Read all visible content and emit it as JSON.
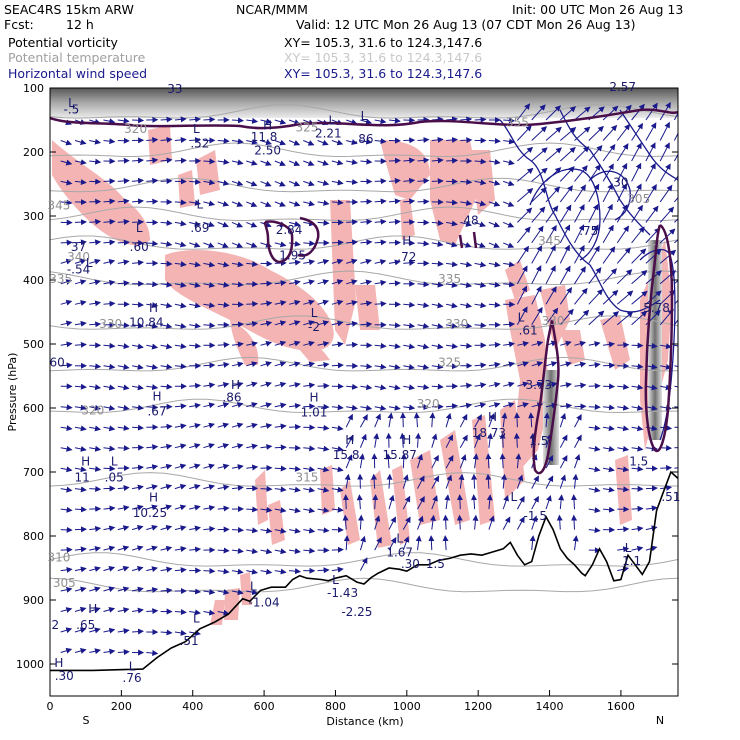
{
  "header": {
    "model": "SEAC4RS 15km ARW",
    "org": "NCAR/MMM",
    "init": "Init: 00 UTC Mon 26 Aug 13",
    "fcst_label": "Fcst:",
    "fcst_value": "12 h",
    "valid": "Valid: 12 UTC Mon 26 Aug 13 (07 CDT Mon 26 Aug 13)"
  },
  "fields": [
    {
      "name": "Potential vorticity",
      "xy": "XY=  105.3,  31.6  to  124.3,147.6",
      "color": "#000000"
    },
    {
      "name": "Potential temperature",
      "xy": "XY=  105.3,  31.6  to  124.3,147.6",
      "color": "#a0a0a0"
    },
    {
      "name": "Horizontal wind speed",
      "xy": "XY=  105.3,  31.6  to  124.3,147.6",
      "color": "#1a1a8c"
    }
  ],
  "chart_data": {
    "type": "cross-section",
    "xlabel": "Distance (km)",
    "ylabel": "Pressure (hPa)",
    "xlim": [
      0,
      1760
    ],
    "ylim": [
      1050,
      100
    ],
    "x_ticks": [
      0,
      200,
      400,
      600,
      800,
      1000,
      1200,
      1400,
      1600
    ],
    "y_ticks": [
      100,
      200,
      300,
      400,
      500,
      600,
      700,
      800,
      900,
      1000
    ],
    "end_labels": {
      "left": "S",
      "right": "N"
    },
    "colors": {
      "pv_shading": "#f4b4b4",
      "theta": "#a8a8a8",
      "wind": "#1a1a8c",
      "pv_contour": "#4a0f4a",
      "terrain": "#000000"
    },
    "theta_labels": [
      {
        "x": 240,
        "p": 170,
        "text": "320"
      },
      {
        "x": 720,
        "p": 168,
        "text": "325"
      },
      {
        "x": 1310,
        "p": 160,
        "text": "355"
      },
      {
        "x": 25,
        "p": 290,
        "text": "345"
      },
      {
        "x": 80,
        "p": 370,
        "text": "340"
      },
      {
        "x": 30,
        "p": 405,
        "text": "335"
      },
      {
        "x": 1400,
        "p": 345,
        "text": "345"
      },
      {
        "x": 1650,
        "p": 280,
        "text": "305"
      },
      {
        "x": 1120,
        "p": 405,
        "text": "335"
      },
      {
        "x": 170,
        "p": 475,
        "text": "330"
      },
      {
        "x": 1140,
        "p": 475,
        "text": "330"
      },
      {
        "x": 1410,
        "p": 470,
        "text": "330"
      },
      {
        "x": 1120,
        "p": 535,
        "text": "325"
      },
      {
        "x": 120,
        "p": 610,
        "text": "320"
      },
      {
        "x": 1060,
        "p": 600,
        "text": "320"
      },
      {
        "x": 720,
        "p": 715,
        "text": "315"
      },
      {
        "x": 25,
        "p": 840,
        "text": "310"
      },
      {
        "x": 40,
        "p": 880,
        "text": "305"
      }
    ],
    "pv_labels": [
      {
        "x": 350,
        "p": 108,
        "text": "33"
      },
      {
        "x": 1605,
        "p": 105,
        "text": "2.57"
      },
      {
        "x": 60,
        "p": 130,
        "text": "L"
      },
      {
        "x": 60,
        "p": 140,
        "text": "-.5"
      },
      {
        "x": 410,
        "p": 170,
        "text": "L"
      },
      {
        "x": 420,
        "p": 193,
        "text": ".52"
      },
      {
        "x": 610,
        "p": 165,
        "text": "H"
      },
      {
        "x": 600,
        "p": 183,
        "text": "11.8"
      },
      {
        "x": 610,
        "p": 204,
        "text": "2.50"
      },
      {
        "x": 790,
        "p": 157,
        "text": "L"
      },
      {
        "x": 780,
        "p": 177,
        "text": "2.21"
      },
      {
        "x": 880,
        "p": 150,
        "text": "L"
      },
      {
        "x": 880,
        "p": 186,
        "text": ".86"
      },
      {
        "x": 420,
        "p": 288,
        "text": "L"
      },
      {
        "x": 420,
        "p": 325,
        "text": ".69"
      },
      {
        "x": 250,
        "p": 325,
        "text": "L"
      },
      {
        "x": 250,
        "p": 355,
        "text": ".60"
      },
      {
        "x": 80,
        "p": 355,
        "text": "37"
      },
      {
        "x": 110,
        "p": 380,
        "text": "L"
      },
      {
        "x": 80,
        "p": 390,
        "text": "-.54"
      },
      {
        "x": 670,
        "p": 328,
        "text": "2.84"
      },
      {
        "x": 680,
        "p": 368,
        "text": "1.95"
      },
      {
        "x": 1000,
        "p": 345,
        "text": "H"
      },
      {
        "x": 1000,
        "p": 370,
        "text": ".72"
      },
      {
        "x": 1180,
        "p": 313,
        "text": "48"
      },
      {
        "x": 1510,
        "p": 330,
        "text": ".75"
      },
      {
        "x": 1600,
        "p": 254,
        "text": "30"
      },
      {
        "x": 290,
        "p": 450,
        "text": "H"
      },
      {
        "x": 270,
        "p": 473,
        "text": "10.84"
      },
      {
        "x": 740,
        "p": 458,
        "text": "L"
      },
      {
        "x": 740,
        "p": 480,
        "text": "-2"
      },
      {
        "x": 1320,
        "p": 465,
        "text": "L"
      },
      {
        "x": 1340,
        "p": 485,
        "text": ".61"
      },
      {
        "x": 20,
        "p": 535,
        "text": "60"
      },
      {
        "x": 1700,
        "p": 450,
        "text": "5.78"
      },
      {
        "x": 300,
        "p": 588,
        "text": "H"
      },
      {
        "x": 300,
        "p": 612,
        "text": ".67"
      },
      {
        "x": 520,
        "p": 570,
        "text": "H"
      },
      {
        "x": 510,
        "p": 590,
        "text": ".86"
      },
      {
        "x": 740,
        "p": 590,
        "text": "H"
      },
      {
        "x": 740,
        "p": 613,
        "text": "1.01"
      },
      {
        "x": 1370,
        "p": 570,
        "text": "3.73"
      },
      {
        "x": 840,
        "p": 656,
        "text": "H"
      },
      {
        "x": 830,
        "p": 680,
        "text": "15.8"
      },
      {
        "x": 1000,
        "p": 656,
        "text": "H"
      },
      {
        "x": 980,
        "p": 680,
        "text": "15.87"
      },
      {
        "x": 1240,
        "p": 620,
        "text": "H"
      },
      {
        "x": 1230,
        "p": 645,
        "text": "18.73"
      },
      {
        "x": 1370,
        "p": 658,
        "text": "1.5"
      },
      {
        "x": 100,
        "p": 690,
        "text": "H"
      },
      {
        "x": 90,
        "p": 715,
        "text": "11"
      },
      {
        "x": 180,
        "p": 690,
        "text": "L"
      },
      {
        "x": 180,
        "p": 715,
        "text": ".05"
      },
      {
        "x": 290,
        "p": 746,
        "text": "H"
      },
      {
        "x": 280,
        "p": 770,
        "text": "10.25"
      },
      {
        "x": 1650,
        "p": 690,
        "text": "1.5"
      },
      {
        "x": 1300,
        "p": 745,
        "text": "L"
      },
      {
        "x": 1360,
        "p": 775,
        "text": "-1.5"
      },
      {
        "x": 1740,
        "p": 745,
        "text": ".51"
      },
      {
        "x": 980,
        "p": 810,
        "text": "L"
      },
      {
        "x": 980,
        "p": 832,
        "text": "1.67"
      },
      {
        "x": 1010,
        "p": 850,
        "text": ".30"
      },
      {
        "x": 1080,
        "p": 850,
        "text": "1.5"
      },
      {
        "x": 1620,
        "p": 825,
        "text": "L"
      },
      {
        "x": 1630,
        "p": 845,
        "text": "1.1"
      },
      {
        "x": 570,
        "p": 885,
        "text": "L"
      },
      {
        "x": 600,
        "p": 910,
        "text": "-1.04"
      },
      {
        "x": 800,
        "p": 875,
        "text": "L"
      },
      {
        "x": 820,
        "p": 895,
        "text": "-1.43"
      },
      {
        "x": 860,
        "p": 925,
        "text": "-2.25"
      },
      {
        "x": 120,
        "p": 920,
        "text": "H"
      },
      {
        "x": 100,
        "p": 945,
        "text": ".65"
      },
      {
        "x": 15,
        "p": 945,
        "text": "2"
      },
      {
        "x": 410,
        "p": 935,
        "text": "L"
      },
      {
        "x": 390,
        "p": 970,
        "text": ".51"
      },
      {
        "x": 25,
        "p": 1005,
        "text": "H"
      },
      {
        "x": 40,
        "p": 1025,
        "text": ".30"
      },
      {
        "x": 230,
        "p": 1010,
        "text": "L"
      },
      {
        "x": 230,
        "p": 1028,
        "text": ".76"
      }
    ],
    "terrain": [
      [
        0,
        1010
      ],
      [
        120,
        1010
      ],
      [
        260,
        1008
      ],
      [
        300,
        990
      ],
      [
        340,
        975
      ],
      [
        380,
        965
      ],
      [
        420,
        945
      ],
      [
        460,
        935
      ],
      [
        500,
        922
      ],
      [
        540,
        898
      ],
      [
        560,
        902
      ],
      [
        590,
        885
      ],
      [
        620,
        880
      ],
      [
        660,
        880
      ],
      [
        680,
        868
      ],
      [
        700,
        862
      ],
      [
        720,
        866
      ],
      [
        760,
        868
      ],
      [
        780,
        870
      ],
      [
        800,
        866
      ],
      [
        830,
        862
      ],
      [
        860,
        872
      ],
      [
        880,
        875
      ],
      [
        900,
        865
      ],
      [
        920,
        858
      ],
      [
        950,
        850
      ],
      [
        980,
        852
      ],
      [
        1000,
        855
      ],
      [
        1030,
        845
      ],
      [
        1060,
        845
      ],
      [
        1090,
        838
      ],
      [
        1120,
        835
      ],
      [
        1150,
        830
      ],
      [
        1180,
        828
      ],
      [
        1210,
        830
      ],
      [
        1240,
        825
      ],
      [
        1270,
        820
      ],
      [
        1290,
        810
      ],
      [
        1310,
        830
      ],
      [
        1330,
        845
      ],
      [
        1350,
        840
      ],
      [
        1370,
        800
      ],
      [
        1390,
        770
      ],
      [
        1410,
        790
      ],
      [
        1430,
        820
      ],
      [
        1450,
        835
      ],
      [
        1470,
        845
      ],
      [
        1490,
        858
      ],
      [
        1500,
        862
      ],
      [
        1520,
        845
      ],
      [
        1540,
        820
      ],
      [
        1560,
        840
      ],
      [
        1580,
        870
      ],
      [
        1600,
        868
      ],
      [
        1620,
        830
      ],
      [
        1640,
        845
      ],
      [
        1660,
        860
      ],
      [
        1680,
        840
      ],
      [
        1700,
        760
      ],
      [
        1720,
        730
      ],
      [
        1740,
        700
      ],
      [
        1760,
        710
      ]
    ]
  }
}
